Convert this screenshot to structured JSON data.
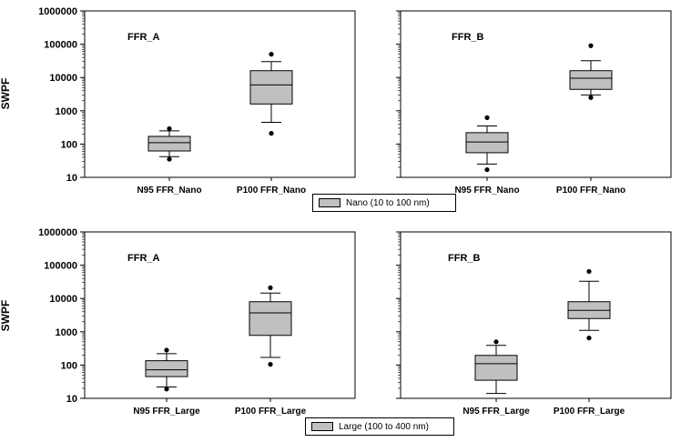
{
  "colors": {
    "box_fill": "#c0c0c0",
    "stroke": "#000000",
    "background": "#ffffff"
  },
  "legends": [
    {
      "label": "Nano (10 to 100 nm)"
    },
    {
      "label": "Large (100 to 400 nm)"
    }
  ],
  "chart_data": [
    {
      "type": "box",
      "title": "FFR_A",
      "ylabel": "SWPF",
      "yscale": "log",
      "ylim": [
        10,
        1000000
      ],
      "yticks": [
        "10",
        "100",
        "1000",
        "10000",
        "100000",
        "1000000"
      ],
      "categories": [
        "N95 FFR_Nano",
        "P100 FFR_Nano"
      ],
      "boxes": [
        {
          "whisker_low": 42,
          "q1": 62,
          "median": 110,
          "q3": 170,
          "whisker_high": 250,
          "outliers": [
            35,
            290
          ]
        },
        {
          "whisker_low": 450,
          "q1": 1600,
          "median": 6000,
          "q3": 16000,
          "whisker_high": 30000,
          "outliers": [
            210,
            50000
          ]
        }
      ]
    },
    {
      "type": "box",
      "title": "FFR_B",
      "ylabel": "",
      "yscale": "log",
      "ylim": [
        10,
        1000000
      ],
      "yticks": [],
      "categories": [
        "N95 FFR_Nano",
        "P100 FFR_Nano"
      ],
      "boxes": [
        {
          "whisker_low": 25,
          "q1": 55,
          "median": 115,
          "q3": 220,
          "whisker_high": 350,
          "outliers": [
            17,
            620
          ]
        },
        {
          "whisker_low": 3000,
          "q1": 4400,
          "median": 9500,
          "q3": 16000,
          "whisker_high": 32000,
          "outliers": [
            2500,
            90000
          ]
        }
      ]
    },
    {
      "type": "box",
      "title": "FFR_A",
      "ylabel": "SWPF",
      "yscale": "log",
      "ylim": [
        10,
        1000000
      ],
      "yticks": [
        "10",
        "100",
        "1000",
        "10000",
        "100000",
        "1000000"
      ],
      "categories": [
        "N95 FFR_Large",
        "P100 FFR_Large"
      ],
      "boxes": [
        {
          "whisker_low": 22,
          "q1": 45,
          "median": 72,
          "q3": 135,
          "whisker_high": 220,
          "outliers": [
            19,
            280
          ]
        },
        {
          "whisker_low": 170,
          "q1": 780,
          "median": 3700,
          "q3": 8000,
          "whisker_high": 14500,
          "outliers": [
            105,
            21000
          ]
        }
      ]
    },
    {
      "type": "box",
      "title": "FFR_B",
      "ylabel": "",
      "yscale": "log",
      "ylim": [
        10,
        1000000
      ],
      "yticks": [],
      "categories": [
        "N95 FFR_Large",
        "P100 FFR_Large"
      ],
      "boxes": [
        {
          "whisker_low": 14,
          "q1": 35,
          "median": 110,
          "q3": 195,
          "whisker_high": 390,
          "outliers": [
            500
          ]
        },
        {
          "whisker_low": 1100,
          "q1": 2500,
          "median": 4400,
          "q3": 8000,
          "whisker_high": 33000,
          "outliers": [
            650,
            65000
          ]
        }
      ]
    }
  ]
}
